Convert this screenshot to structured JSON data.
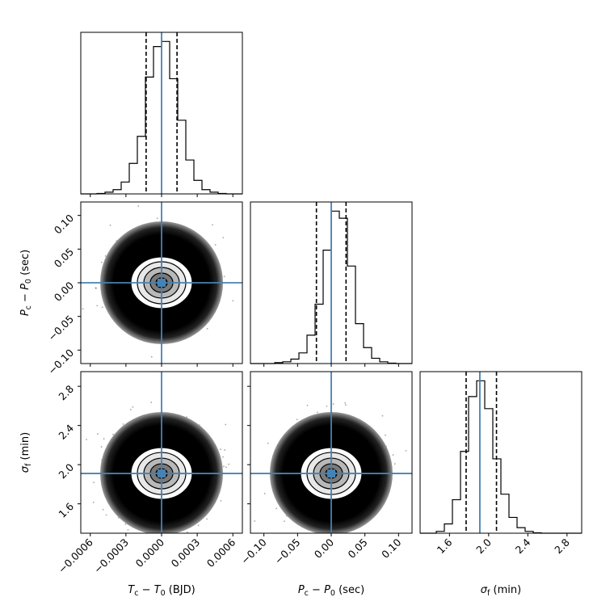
{
  "chart_data": {
    "type": "corner",
    "truths": {
      "tc": 0.0,
      "pc": 0.0,
      "sf": 1.91
    },
    "truth_color": "#4682b4",
    "params": [
      {
        "key": "tc",
        "label": "T_c - T_0 (BJD)",
        "range": [
          -0.00068,
          0.00068
        ],
        "ticks": [
          -0.0006,
          -0.0003,
          0.0,
          0.0003,
          0.0006
        ],
        "tick_labels": [
          "−0.0006",
          "−0.0003",
          "0.0000",
          "0.0003",
          "0.0006"
        ],
        "quantiles": [
          -0.00013,
          0.00013
        ],
        "hist_edges": [
          -0.00068,
          -0.000612,
          -0.000544,
          -0.000476,
          -0.000408,
          -0.00034,
          -0.000272,
          -0.000204,
          -0.000136,
          -6.8e-05,
          0.0,
          6.8e-05,
          0.000136,
          0.000204,
          0.000272,
          0.00034,
          0.000408,
          0.000476,
          0.000544,
          0.000612,
          0.00068
        ],
        "hist_counts": [
          0,
          0,
          0.5,
          2,
          5,
          14,
          36,
          68,
          138,
          174,
          180,
          136,
          87,
          40,
          16,
          5,
          2,
          0.5,
          0,
          0
        ]
      },
      {
        "key": "pc",
        "label": "P_c - P_0 (sec)",
        "range": [
          -0.12,
          0.12
        ],
        "ticks": [
          -0.1,
          -0.05,
          0.0,
          0.05,
          0.1
        ],
        "tick_labels": [
          "−0.10",
          "−0.05",
          "0.00",
          "0.05",
          "0.10"
        ],
        "quantiles": [
          -0.022,
          0.022
        ],
        "hist_edges": [
          -0.12,
          -0.108,
          -0.096,
          -0.084,
          -0.072,
          -0.06,
          -0.048,
          -0.036,
          -0.024,
          -0.012,
          0.0,
          0.012,
          0.024,
          0.036,
          0.048,
          0.06,
          0.072,
          0.084,
          0.096,
          0.108,
          0.12
        ],
        "hist_counts": [
          0,
          0,
          0,
          1,
          2,
          5,
          12,
          32,
          67,
          128,
          172,
          164,
          110,
          45,
          18,
          6,
          2,
          0.5,
          0,
          0
        ]
      },
      {
        "key": "sf",
        "label": "σ_f (min)",
        "range": [
          1.3,
          2.95
        ],
        "ticks": [
          1.6,
          2.0,
          2.4,
          2.8
        ],
        "tick_labels": [
          "1.6",
          "2.0",
          "2.4",
          "2.8"
        ],
        "quantiles": [
          1.77,
          2.08
        ],
        "hist_edges": [
          1.3,
          1.3825,
          1.465,
          1.5475,
          1.63,
          1.7125,
          1.795,
          1.8775,
          1.96,
          2.0425,
          2.125,
          2.2075,
          2.29,
          2.3725,
          2.455,
          2.5375,
          2.62,
          2.7025,
          2.785,
          2.8675,
          2.95
        ],
        "hist_counts": [
          0,
          0,
          2,
          10,
          36,
          88,
          147,
          164,
          134,
          80,
          42,
          17,
          6,
          2,
          0.5,
          0,
          0,
          0,
          0,
          0
        ]
      }
    ],
    "ylabels": {
      "row1": "P_c - P_0 (sec)",
      "row2": "σ_f (min)"
    },
    "grid": false,
    "legend": "none"
  }
}
